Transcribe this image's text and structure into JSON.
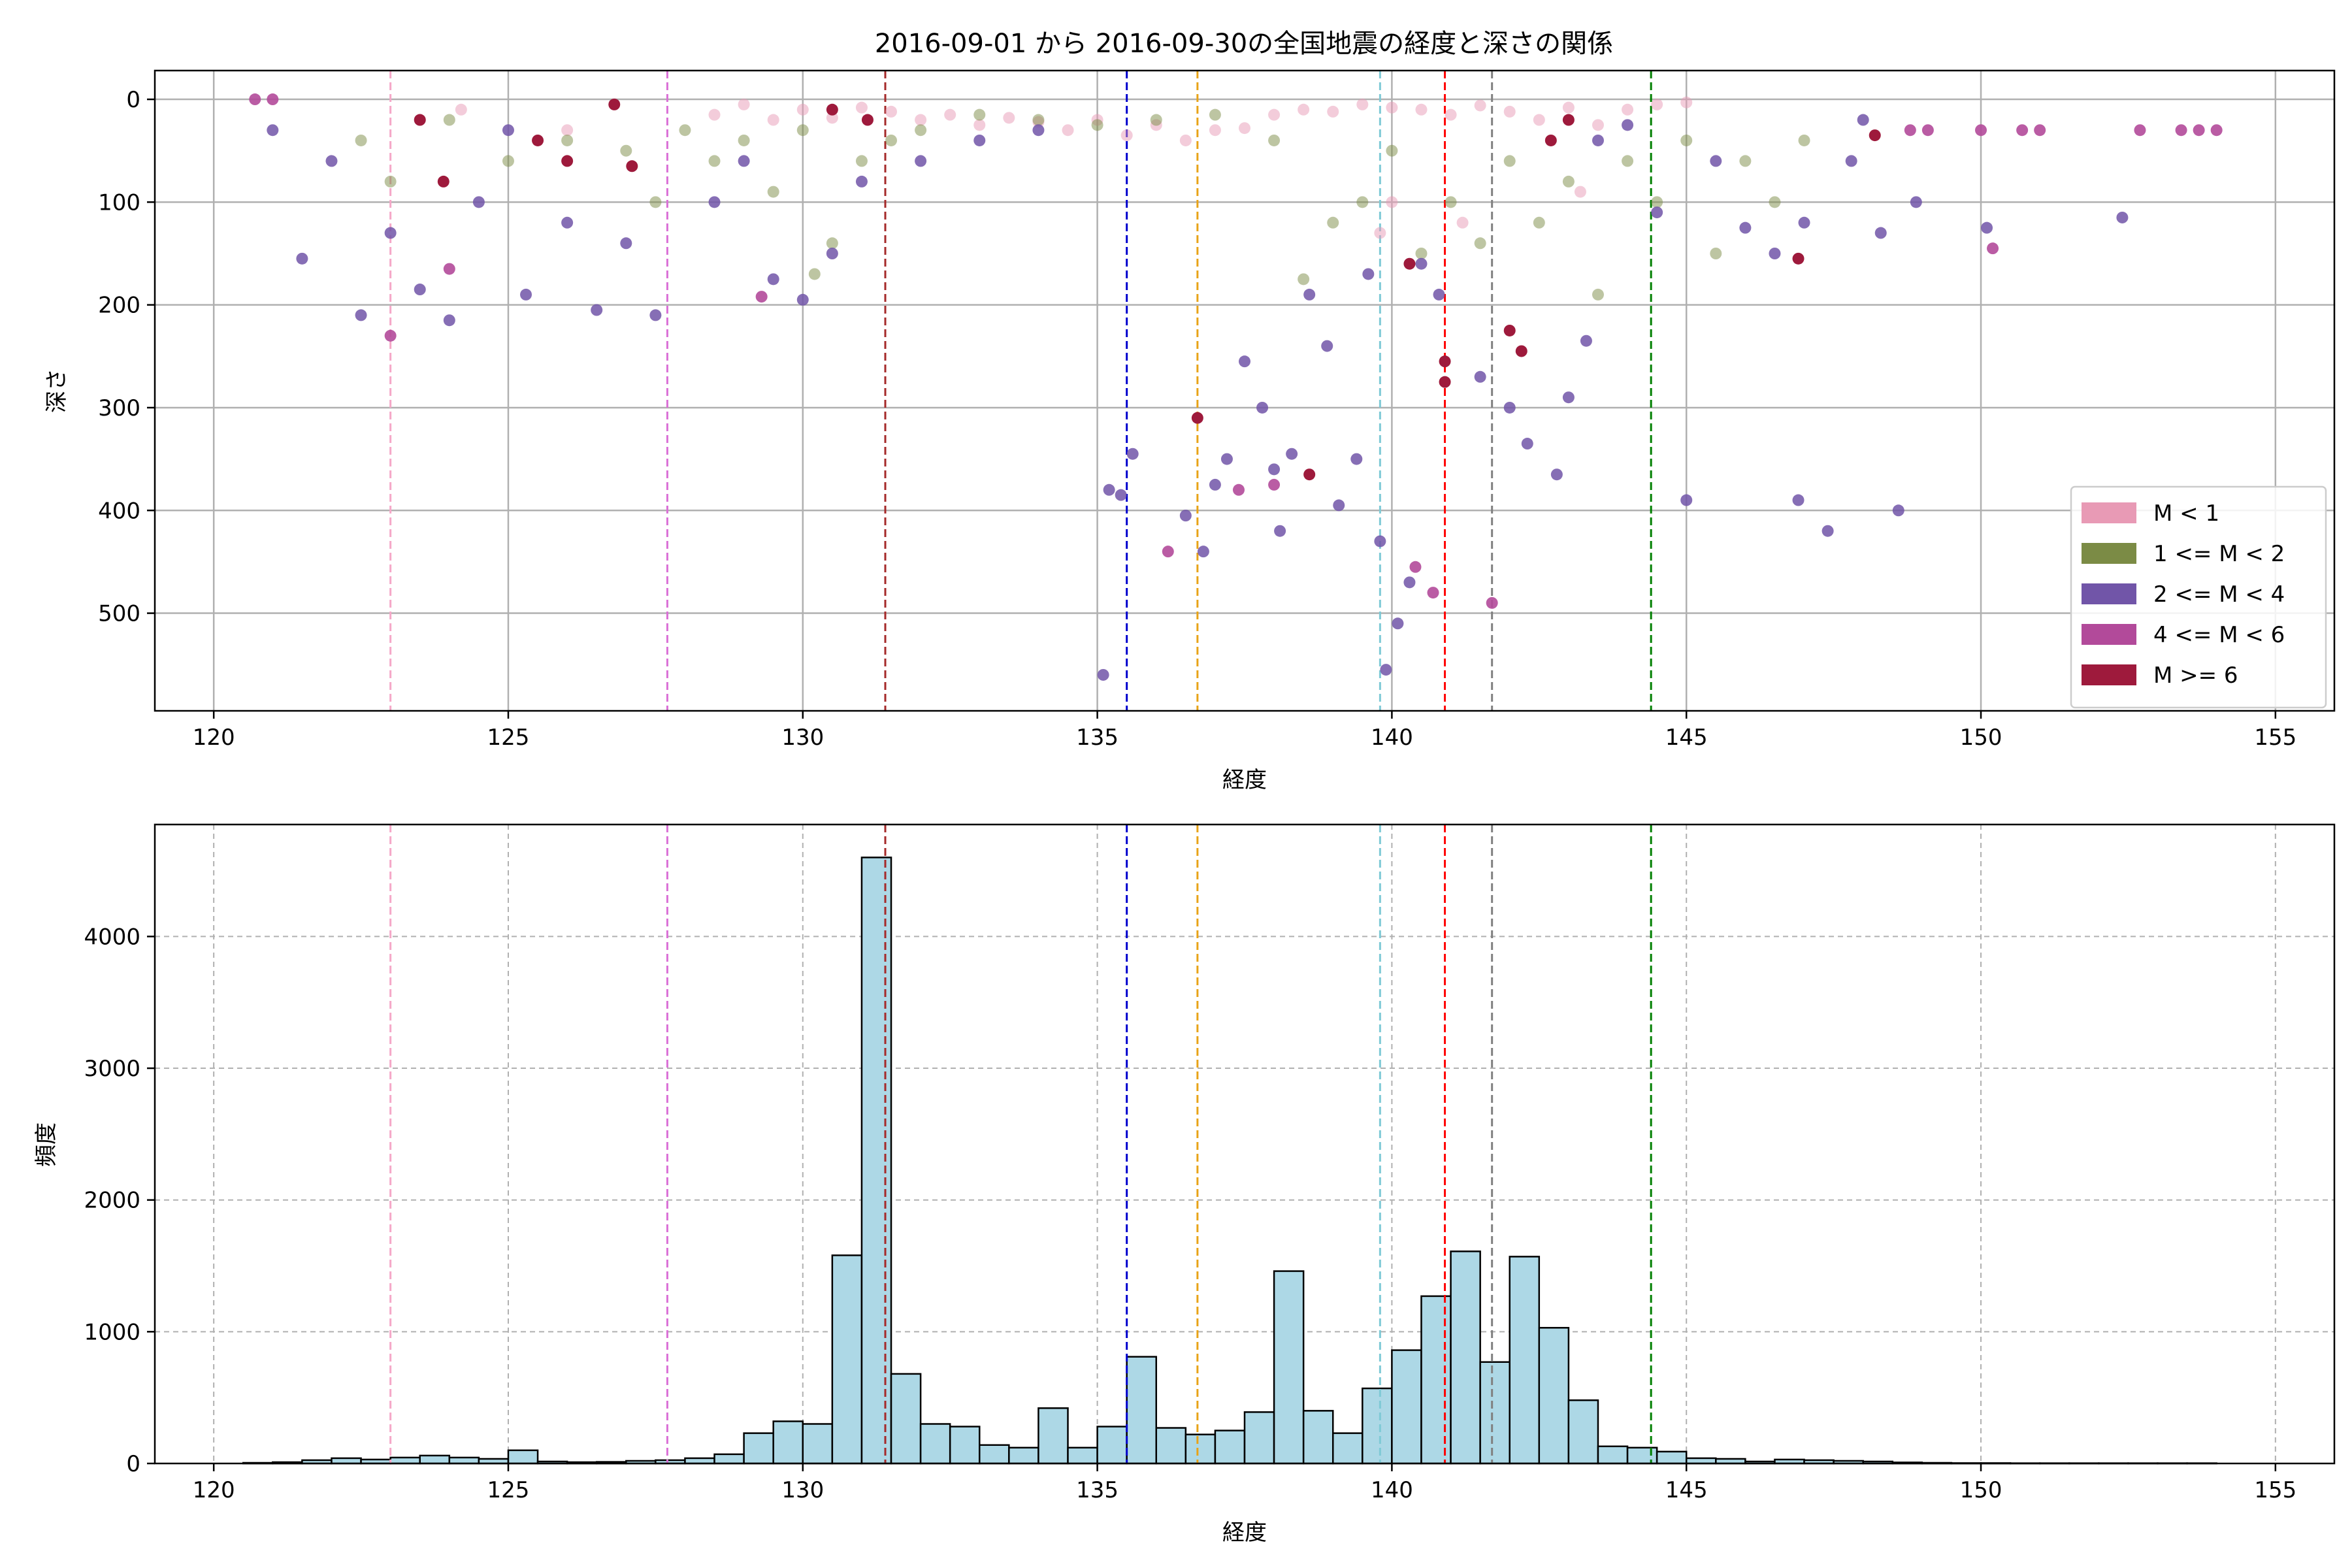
{
  "chart_data": [
    {
      "type": "scatter",
      "title": "2016-09-01 から 2016-09-30の全国地震の経度と深さの関係",
      "xlabel": "経度",
      "ylabel": "深さ",
      "xlim": [
        119,
        156
      ],
      "ylim": [
        595,
        -28
      ],
      "y_inverted": true,
      "xticks": [
        120,
        125,
        130,
        135,
        140,
        145,
        150,
        155
      ],
      "yticks": [
        0,
        100,
        200,
        300,
        400,
        500
      ],
      "grid": true,
      "legend_position": "lower-right",
      "series": [
        {
          "name": "M < 1",
          "color": "#e89ab5",
          "alpha": 0.5,
          "points": [
            [
              123.5,
              20
            ],
            [
              124.2,
              10
            ],
            [
              126.0,
              30
            ],
            [
              128.5,
              15
            ],
            [
              129.0,
              5
            ],
            [
              129.5,
              20
            ],
            [
              130.0,
              10
            ],
            [
              130.5,
              18
            ],
            [
              131.0,
              8
            ],
            [
              131.5,
              12
            ],
            [
              132.0,
              20
            ],
            [
              132.5,
              15
            ],
            [
              133.0,
              25
            ],
            [
              133.5,
              18
            ],
            [
              134.0,
              22
            ],
            [
              134.5,
              30
            ],
            [
              135.0,
              20
            ],
            [
              135.5,
              35
            ],
            [
              136.0,
              25
            ],
            [
              136.5,
              40
            ],
            [
              137.0,
              30
            ],
            [
              137.5,
              28
            ],
            [
              138.0,
              15
            ],
            [
              138.5,
              10
            ],
            [
              139.0,
              12
            ],
            [
              139.5,
              5
            ],
            [
              140.0,
              8
            ],
            [
              140.5,
              10
            ],
            [
              141.0,
              15
            ],
            [
              141.5,
              6
            ],
            [
              142.0,
              12
            ],
            [
              142.5,
              20
            ],
            [
              143.0,
              8
            ],
            [
              143.5,
              25
            ],
            [
              144.0,
              10
            ],
            [
              144.5,
              5
            ],
            [
              145.0,
              3
            ],
            [
              140.0,
              100
            ],
            [
              139.8,
              130
            ],
            [
              141.2,
              120
            ],
            [
              143.2,
              90
            ]
          ]
        },
        {
          "name": "1 <= M < 2",
          "color": "#7b8b45",
          "alpha": 0.5,
          "points": [
            [
              122.5,
              40
            ],
            [
              123.0,
              80
            ],
            [
              124.0,
              20
            ],
            [
              125.0,
              60
            ],
            [
              126.0,
              40
            ],
            [
              127.0,
              50
            ],
            [
              127.5,
              100
            ],
            [
              128.0,
              30
            ],
            [
              128.5,
              60
            ],
            [
              129.0,
              40
            ],
            [
              129.5,
              90
            ],
            [
              130.0,
              30
            ],
            [
              130.2,
              170
            ],
            [
              130.5,
              140
            ],
            [
              131.0,
              60
            ],
            [
              131.5,
              40
            ],
            [
              132.0,
              30
            ],
            [
              133.0,
              15
            ],
            [
              134.0,
              20
            ],
            [
              135.0,
              25
            ],
            [
              136.0,
              20
            ],
            [
              137.0,
              15
            ],
            [
              138.0,
              40
            ],
            [
              138.5,
              175
            ],
            [
              139.0,
              120
            ],
            [
              139.5,
              100
            ],
            [
              140.0,
              50
            ],
            [
              140.5,
              150
            ],
            [
              141.0,
              100
            ],
            [
              141.5,
              140
            ],
            [
              142.0,
              60
            ],
            [
              142.5,
              120
            ],
            [
              143.0,
              80
            ],
            [
              143.5,
              190
            ],
            [
              144.0,
              60
            ],
            [
              144.5,
              100
            ],
            [
              145.0,
              40
            ],
            [
              145.5,
              150
            ],
            [
              146.0,
              60
            ],
            [
              146.5,
              100
            ],
            [
              147.0,
              40
            ]
          ]
        },
        {
          "name": "2 <= M < 4",
          "color": "#7155a8",
          "alpha": 0.85,
          "points": [
            [
              121.0,
              30
            ],
            [
              121.5,
              155
            ],
            [
              122.0,
              60
            ],
            [
              122.5,
              210
            ],
            [
              123.0,
              130
            ],
            [
              123.5,
              185
            ],
            [
              124.0,
              215
            ],
            [
              124.5,
              100
            ],
            [
              125.0,
              30
            ],
            [
              125.3,
              190
            ],
            [
              126.0,
              120
            ],
            [
              126.5,
              205
            ],
            [
              127.0,
              140
            ],
            [
              127.5,
              210
            ],
            [
              128.5,
              100
            ],
            [
              129.0,
              60
            ],
            [
              129.5,
              175
            ],
            [
              130.0,
              195
            ],
            [
              130.5,
              150
            ],
            [
              131.0,
              80
            ],
            [
              132.0,
              60
            ],
            [
              133.0,
              40
            ],
            [
              134.0,
              30
            ],
            [
              135.1,
              560
            ],
            [
              135.2,
              380
            ],
            [
              135.4,
              385
            ],
            [
              135.6,
              345
            ],
            [
              136.5,
              405
            ],
            [
              136.8,
              440
            ],
            [
              137.0,
              375
            ],
            [
              137.2,
              350
            ],
            [
              137.5,
              255
            ],
            [
              137.8,
              300
            ],
            [
              138.0,
              360
            ],
            [
              138.1,
              420
            ],
            [
              138.3,
              345
            ],
            [
              138.6,
              190
            ],
            [
              138.9,
              240
            ],
            [
              139.1,
              395
            ],
            [
              139.4,
              350
            ],
            [
              139.6,
              170
            ],
            [
              139.8,
              430
            ],
            [
              139.9,
              555
            ],
            [
              140.1,
              510
            ],
            [
              140.3,
              470
            ],
            [
              140.5,
              160
            ],
            [
              140.8,
              190
            ],
            [
              141.5,
              270
            ],
            [
              142.0,
              300
            ],
            [
              142.3,
              335
            ],
            [
              142.8,
              365
            ],
            [
              143.0,
              290
            ],
            [
              143.3,
              235
            ],
            [
              143.5,
              40
            ],
            [
              144.0,
              25
            ],
            [
              144.5,
              110
            ],
            [
              145.0,
              390
            ],
            [
              145.5,
              60
            ],
            [
              146.0,
              125
            ],
            [
              146.5,
              150
            ],
            [
              146.9,
              390
            ],
            [
              147.0,
              120
            ],
            [
              147.4,
              420
            ],
            [
              147.8,
              60
            ],
            [
              148.0,
              20
            ],
            [
              148.3,
              130
            ],
            [
              148.6,
              400
            ],
            [
              148.9,
              100
            ],
            [
              150.1,
              125
            ],
            [
              152.4,
              115
            ]
          ]
        },
        {
          "name": "4 <= M < 6",
          "color": "#b24a9a",
          "alpha": 0.9,
          "points": [
            [
              120.7,
              0
            ],
            [
              121.0,
              0
            ],
            [
              123.0,
              230
            ],
            [
              124.0,
              165
            ],
            [
              129.3,
              192
            ],
            [
              136.2,
              440
            ],
            [
              137.4,
              380
            ],
            [
              138.0,
              375
            ],
            [
              140.4,
              455
            ],
            [
              140.7,
              480
            ],
            [
              141.7,
              490
            ],
            [
              148.8,
              30
            ],
            [
              149.1,
              30
            ],
            [
              150.0,
              30
            ],
            [
              150.2,
              145
            ],
            [
              150.7,
              30
            ],
            [
              151.0,
              30
            ],
            [
              152.7,
              30
            ],
            [
              153.4,
              30
            ],
            [
              153.7,
              30
            ],
            [
              154.0,
              30
            ]
          ]
        },
        {
          "name": "M >= 6",
          "color": "#9e1a3c",
          "alpha": 1.0,
          "points": [
            [
              123.5,
              20
            ],
            [
              123.9,
              80
            ],
            [
              125.5,
              40
            ],
            [
              126.0,
              60
            ],
            [
              126.8,
              5
            ],
            [
              127.1,
              65
            ],
            [
              130.5,
              10
            ],
            [
              131.1,
              20
            ],
            [
              136.7,
              310
            ],
            [
              138.6,
              365
            ],
            [
              140.3,
              160
            ],
            [
              140.9,
              275
            ],
            [
              140.9,
              255
            ],
            [
              142.0,
              225
            ],
            [
              142.2,
              245
            ],
            [
              142.7,
              40
            ],
            [
              143.0,
              20
            ],
            [
              146.9,
              155
            ],
            [
              148.2,
              35
            ]
          ]
        }
      ],
      "vlines": [
        {
          "x": 123.0,
          "color": "#f5a8c8"
        },
        {
          "x": 127.7,
          "color": "#da70d6"
        },
        {
          "x": 131.4,
          "color": "#a52a2a"
        },
        {
          "x": 135.5,
          "color": "#0000cd"
        },
        {
          "x": 136.7,
          "color": "#e8a317"
        },
        {
          "x": 139.8,
          "color": "#7fcad6"
        },
        {
          "x": 140.9,
          "color": "#ff0000"
        },
        {
          "x": 141.7,
          "color": "#808080"
        },
        {
          "x": 144.4,
          "color": "#008000"
        }
      ]
    },
    {
      "type": "bar",
      "title": "",
      "xlabel": "経度",
      "ylabel": "頻度",
      "xlim": [
        119,
        156
      ],
      "ylim": [
        0,
        4850
      ],
      "xticks": [
        120,
        125,
        130,
        135,
        140,
        145,
        150,
        155
      ],
      "yticks": [
        0,
        1000,
        2000,
        3000,
        4000
      ],
      "grid": true,
      "bar_color": "#add8e6",
      "bin_edges": [
        120.5,
        121.0,
        121.5,
        122.0,
        122.5,
        123.0,
        123.5,
        124.0,
        124.5,
        125.0,
        125.5,
        126.0,
        126.5,
        127.0,
        127.5,
        128.0,
        128.5,
        129.0,
        129.5,
        130.0,
        130.5,
        131.0,
        131.5,
        132.0,
        132.5,
        133.0,
        133.5,
        134.0,
        134.5,
        135.0,
        135.5,
        136.0,
        136.5,
        137.0,
        137.5,
        138.0,
        138.5,
        139.0,
        139.5,
        140.0,
        140.5,
        141.0,
        141.5,
        142.0,
        142.5,
        143.0,
        143.5,
        144.0,
        144.5,
        145.0,
        145.5,
        146.0,
        146.5,
        147.0,
        147.5,
        148.0,
        148.5,
        149.0,
        149.5,
        150.0,
        150.5,
        151.0,
        151.5,
        152.0,
        152.5,
        153.0,
        153.5,
        154.0
      ],
      "counts": [
        5,
        10,
        25,
        40,
        30,
        45,
        60,
        45,
        35,
        100,
        15,
        10,
        12,
        20,
        25,
        40,
        70,
        230,
        320,
        300,
        1580,
        4600,
        680,
        300,
        280,
        140,
        120,
        420,
        120,
        280,
        810,
        270,
        220,
        250,
        390,
        1460,
        400,
        230,
        570,
        860,
        1270,
        1610,
        770,
        1570,
        1030,
        480,
        130,
        120,
        90,
        40,
        35,
        15,
        30,
        25,
        20,
        15,
        8,
        5,
        3,
        3,
        2,
        2,
        2,
        2,
        2,
        2,
        2
      ],
      "vlines": [
        {
          "x": 123.0,
          "color": "#f5a8c8"
        },
        {
          "x": 127.7,
          "color": "#da70d6"
        },
        {
          "x": 131.4,
          "color": "#a52a2a"
        },
        {
          "x": 135.5,
          "color": "#0000cd"
        },
        {
          "x": 136.7,
          "color": "#e8a317"
        },
        {
          "x": 139.8,
          "color": "#7fcad6"
        },
        {
          "x": 140.9,
          "color": "#ff0000"
        },
        {
          "x": 141.7,
          "color": "#808080"
        },
        {
          "x": 144.4,
          "color": "#008000"
        }
      ]
    }
  ]
}
